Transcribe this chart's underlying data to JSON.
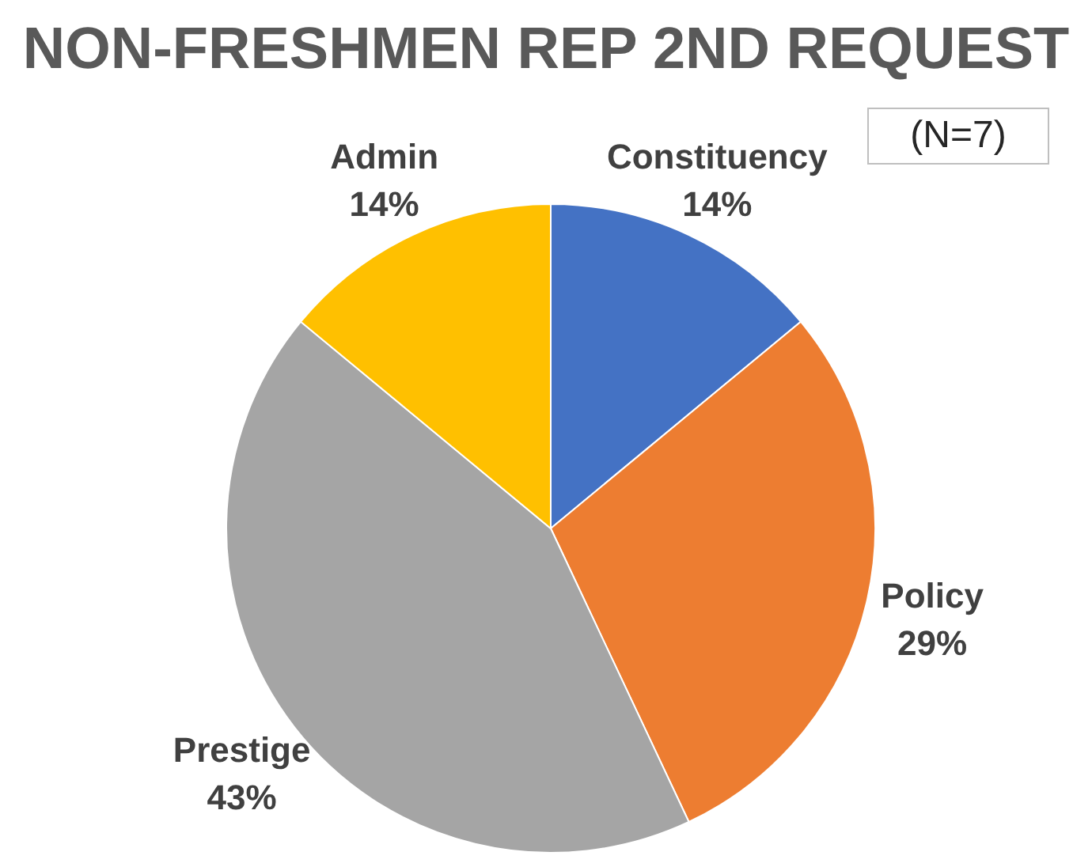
{
  "chart_data": {
    "type": "pie",
    "title": "NON-FRESHMEN REP 2ND REQUEST",
    "categories": [
      "Constituency",
      "Policy",
      "Prestige",
      "Admin"
    ],
    "values": [
      14,
      29,
      43,
      14
    ],
    "value_labels": [
      "14%",
      "29%",
      "43%",
      "14%"
    ],
    "colors": [
      "#4472c4",
      "#ed7d31",
      "#a5a5a5",
      "#ffc000"
    ],
    "annotations": [
      "(N=7)"
    ],
    "legend": false
  }
}
